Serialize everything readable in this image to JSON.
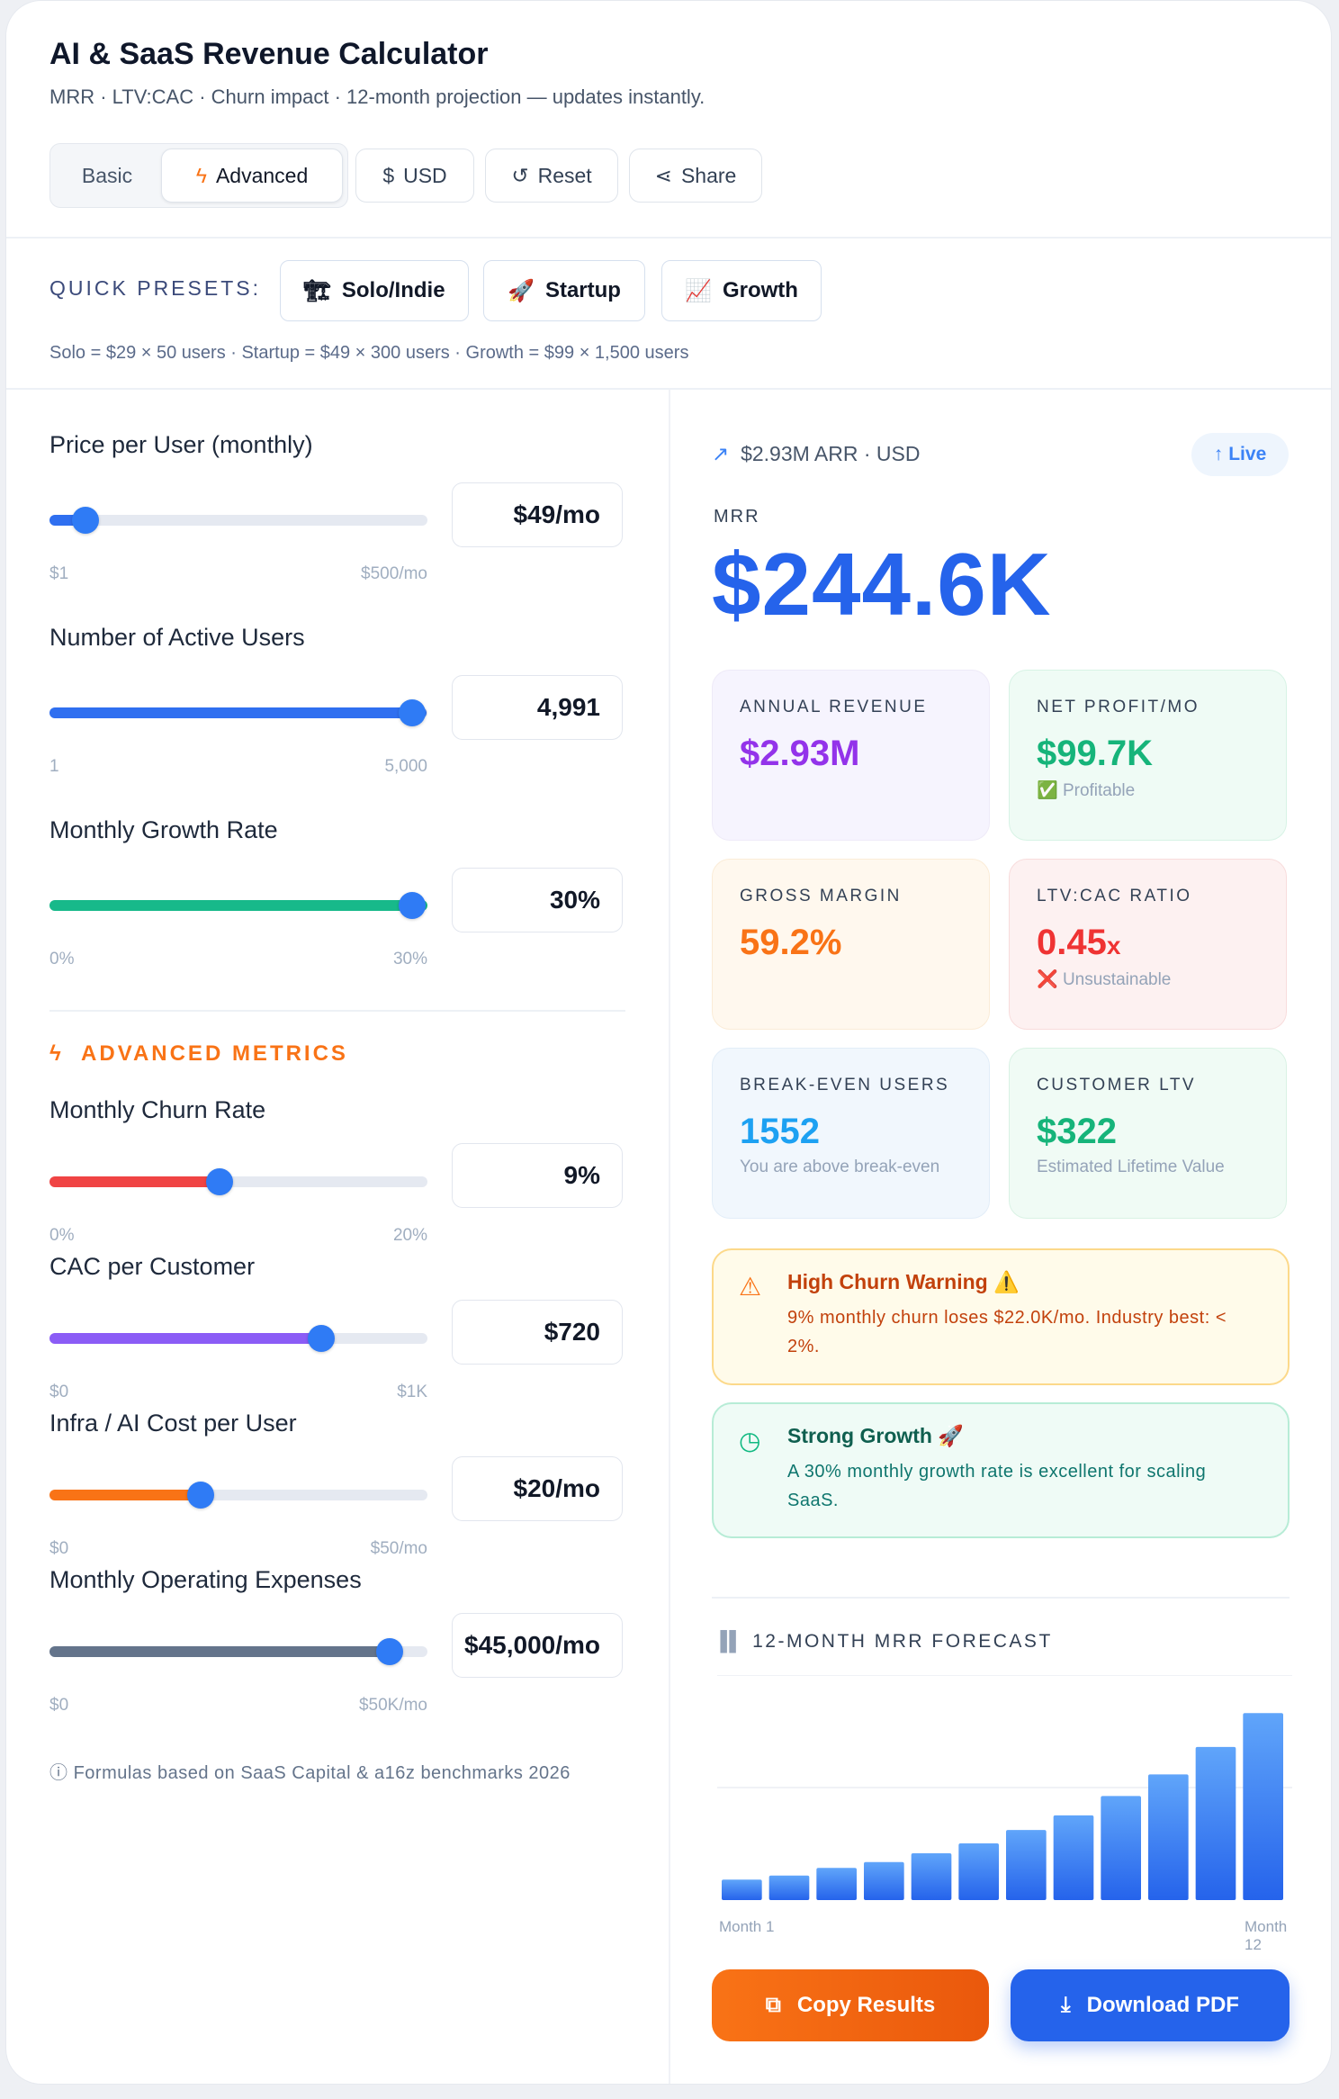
{
  "header": {
    "title": "AI & SaaS Revenue Calculator",
    "subtitle": "MRR · LTV:CAC · Churn impact · 12-month projection — updates instantly."
  },
  "toolbar": {
    "mode_options": [
      "Basic",
      "Advanced"
    ],
    "active_mode": "Advanced",
    "currency": "USD",
    "reset": "Reset",
    "share": "Share"
  },
  "presets": {
    "label": "QUICK PRESETS:",
    "items": [
      {
        "icon": "🏗",
        "label": "Solo/Indie"
      },
      {
        "icon": "🚀",
        "label": "Startup"
      },
      {
        "icon": "📈",
        "label": "Growth"
      }
    ],
    "note": "Solo = $29 × 50 users · Startup = $49 × 300 users · Growth = $99 × 1,500 users"
  },
  "inputs": [
    {
      "label": "Price per User (monthly)",
      "value": "$49/mo",
      "min": "$1",
      "max": "$500/mo",
      "fraction": 0.096,
      "color": "#2f6ff0"
    },
    {
      "label": "Number of Active Users",
      "value": "4,991",
      "min": "1",
      "max": "5,000",
      "fraction": 0.998,
      "color": "#2f6ff0"
    },
    {
      "label": "Monthly Growth Rate",
      "value": "30%",
      "min": "0%",
      "max": "30%",
      "fraction": 1.0,
      "color": "#17b98a"
    }
  ],
  "advanced": {
    "title": "ADVANCED METRICS",
    "inputs": [
      {
        "label": "Monthly Churn Rate",
        "value": "9%",
        "min": "0%",
        "max": "20%",
        "fraction": 0.45,
        "color": "#f04444"
      },
      {
        "label": "CAC per Customer",
        "value": "$720",
        "min": "$0",
        "max": "$1K",
        "fraction": 0.72,
        "color": "#8b5cf6"
      },
      {
        "label": "Infra / AI Cost per User",
        "value": "$20/mo",
        "min": "$0",
        "max": "$50/mo",
        "fraction": 0.4,
        "color": "#f97316"
      },
      {
        "label": "Monthly Operating Expenses",
        "value": "$45,000/mo",
        "min": "$0",
        "max": "$50K/mo",
        "fraction": 0.9,
        "color": "#64748b"
      }
    ]
  },
  "footnote": "Formulas based on SaaS Capital & a16z benchmarks 2026",
  "summary": {
    "arr_line": "$2.93M ARR · USD",
    "live": "Live",
    "mrr_label": "MRR",
    "mrr_value": "$244.6K"
  },
  "metrics": [
    {
      "label": "ANNUAL REVENUE",
      "value": "$2.93M",
      "sub": "",
      "color": "#9333ea",
      "bg": "#f6f4fe",
      "border": "#eeeaf8"
    },
    {
      "label": "NET PROFIT/MO",
      "value": "$99.7K",
      "sub": "Profitable",
      "badge": "✅",
      "color": "#16b47a",
      "bg": "#effbf5",
      "border": "#d7f3e5"
    },
    {
      "label": "GROSS MARGIN",
      "value": "59.2%",
      "sub": "",
      "color": "#f97316",
      "bg": "#fff8ee",
      "border": "#fbecd7"
    },
    {
      "label": "LTV:CAC RATIO",
      "value": "0.45",
      "unit": "x",
      "sub": "Unsustainable",
      "badge": "❌",
      "color": "#ef3333",
      "bg": "#fdf1f1",
      "border": "#f8dcdc"
    },
    {
      "label": "BREAK-EVEN USERS",
      "value": "1552",
      "sub": "You are above break-even",
      "color": "#1da1f2",
      "bg": "#f1f7fd",
      "border": "#e2edf8"
    },
    {
      "label": "CUSTOMER LTV",
      "value": "$322",
      "sub": "Estimated Lifetime Value",
      "color": "#16b47a",
      "bg": "#f0fbf5",
      "border": "#d9f2e4"
    }
  ],
  "alerts": [
    {
      "title": "High Churn Warning ⚠️",
      "text": "9% monthly churn loses $22.0K/mo. Industry best: < 2%.",
      "color": "#c2410c",
      "bg": "#fffbea",
      "border": "#fcd98a"
    },
    {
      "title": "Strong Growth 🚀",
      "text": "A 30% monthly growth rate is excellent for scaling SaaS.",
      "color": "#0f766e",
      "bg": "#effbf6",
      "border": "#b7ecd6"
    }
  ],
  "chart_data": {
    "type": "bar",
    "title": "12-MONTH MRR FORECAST",
    "categories": [
      "Month 1",
      "Month 2",
      "Month 3",
      "Month 4",
      "Month 5",
      "Month 6",
      "Month 7",
      "Month 8",
      "Month 9",
      "Month 10",
      "Month 11",
      "Month 12"
    ],
    "tick_labels": [
      "Month 1",
      "Month 12"
    ],
    "values": [
      35,
      42,
      55,
      65,
      80,
      97,
      120,
      145,
      178,
      215,
      262,
      320
    ],
    "ylim": [
      0,
      385
    ],
    "grid": true,
    "color": "#3b82f6"
  },
  "actions": {
    "copy": "Copy Results",
    "download": "Download PDF"
  }
}
